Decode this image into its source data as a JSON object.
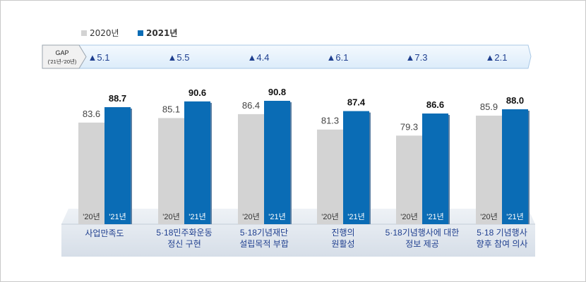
{
  "legend": [
    {
      "label": "2020년",
      "color": "#d3d3d3"
    },
    {
      "label": "2021년",
      "color": "#0a6cb5"
    }
  ],
  "gap_label": "GAP",
  "gap_sub_label": "('21년-'20년)",
  "colors": {
    "accent": "#0a6cb5",
    "grey_bar": "#d3d3d3",
    "gap_text": "#1f3f8f",
    "base_band": "#dfe6ee"
  },
  "chart_data": {
    "type": "bar",
    "categories": [
      [
        "사업만족도"
      ],
      [
        "5·18민주화운동",
        "정신 구현"
      ],
      [
        "5·18기념재단",
        "설립목적 부합"
      ],
      [
        "진행의",
        "원활성"
      ],
      [
        "5·18기념행사에 대한",
        "정보 제공"
      ],
      [
        "5·18 기념행사",
        "향후 참여 의사"
      ]
    ],
    "series": [
      {
        "name": "2020년",
        "short": "'20년",
        "values": [
          83.6,
          85.1,
          86.4,
          81.3,
          79.3,
          85.9
        ],
        "labels": [
          "83.6",
          "85.1",
          "86.4",
          "81.3",
          "79.3",
          "85.9"
        ]
      },
      {
        "name": "2021년",
        "short": "'21년",
        "values": [
          88.7,
          90.6,
          90.8,
          87.4,
          86.6,
          88.0
        ],
        "labels": [
          "88.7",
          "90.6",
          "90.8",
          "87.4",
          "86.6",
          "88.0"
        ]
      }
    ],
    "gap": [
      "▲5.1",
      "▲5.5",
      "▲4.4",
      "▲6.1",
      "▲7.3",
      "▲2.1"
    ]
  }
}
